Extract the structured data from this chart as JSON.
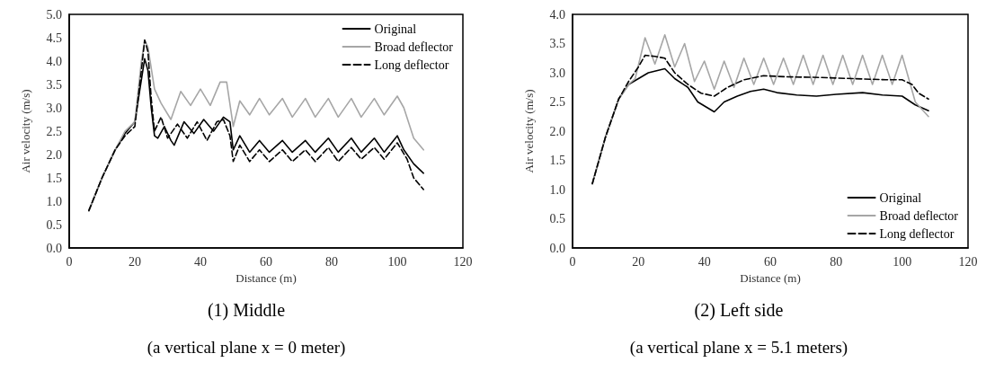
{
  "chart_data": [
    {
      "type": "line",
      "title": "(1) Middle",
      "subtitle": "(a vertical plane x = 0 meter)",
      "xlabel": "Distance (m)",
      "ylabel": "Air velocity (m/s)",
      "xlim": [
        0,
        120
      ],
      "xticks": [
        0,
        20,
        40,
        60,
        80,
        100,
        120
      ],
      "ylim": [
        0,
        5
      ],
      "yticks": [
        {
          "value": 0,
          "label": "0.0"
        },
        {
          "value": 0.5,
          "label": "0.5"
        },
        {
          "value": 1,
          "label": "1.0"
        },
        {
          "value": 1.5,
          "label": "1.5"
        },
        {
          "value": 2,
          "label": "2.0"
        },
        {
          "value": 2.5,
          "label": "2.5"
        },
        {
          "value": 3,
          "label": "3.0"
        },
        {
          "value": 3.5,
          "label": "3.5"
        },
        {
          "value": 4,
          "label": "4.0"
        },
        {
          "value": 4.5,
          "label": "4.5"
        },
        {
          "value": 5,
          "label": "5.0"
        }
      ],
      "legend": "top right",
      "marker": "none",
      "series": [
        {
          "name": "Original",
          "color": "#000000",
          "line_style": "solid",
          "x": [
            6,
            10,
            14,
            17,
            20,
            22,
            23,
            24,
            25,
            26,
            27,
            29,
            31,
            32,
            35,
            38,
            41,
            44,
            47,
            49,
            50,
            52,
            55,
            58,
            61,
            65,
            68,
            72,
            75,
            79,
            82,
            86,
            89,
            93,
            96,
            100,
            102,
            105,
            108
          ],
          "values": [
            0.8,
            1.5,
            2.1,
            2.45,
            2.7,
            3.6,
            4.05,
            3.8,
            3.0,
            2.4,
            2.35,
            2.6,
            2.3,
            2.2,
            2.7,
            2.45,
            2.75,
            2.5,
            2.8,
            2.7,
            2.1,
            2.4,
            2.05,
            2.3,
            2.05,
            2.3,
            2.05,
            2.3,
            2.05,
            2.35,
            2.05,
            2.35,
            2.05,
            2.35,
            2.05,
            2.4,
            2.1,
            1.8,
            1.6
          ]
        },
        {
          "name": "Broad deflector",
          "color": "#a6a6a6",
          "line_style": "solid",
          "x": [
            6,
            10,
            14,
            17,
            20,
            22,
            23,
            24,
            26,
            28,
            31,
            34,
            37,
            40,
            43,
            46,
            48,
            50,
            52,
            55,
            58,
            61,
            65,
            68,
            72,
            75,
            79,
            82,
            86,
            89,
            93,
            96,
            100,
            102,
            105,
            108
          ],
          "values": [
            0.8,
            1.5,
            2.1,
            2.5,
            2.7,
            4.0,
            4.45,
            4.3,
            3.4,
            3.1,
            2.75,
            3.35,
            3.05,
            3.4,
            3.05,
            3.55,
            3.55,
            2.6,
            3.15,
            2.85,
            3.2,
            2.85,
            3.2,
            2.8,
            3.2,
            2.8,
            3.2,
            2.8,
            3.2,
            2.8,
            3.2,
            2.85,
            3.25,
            3.0,
            2.35,
            2.1
          ]
        },
        {
          "name": "Long deflector",
          "color": "#000000",
          "line_style": "dashed",
          "x": [
            6,
            10,
            14,
            17,
            20,
            22,
            23,
            24,
            25,
            26,
            28,
            30,
            33,
            36,
            39,
            42,
            45,
            47,
            49,
            50,
            52,
            55,
            58,
            61,
            65,
            68,
            72,
            75,
            79,
            82,
            86,
            89,
            93,
            96,
            100,
            103,
            105,
            108
          ],
          "values": [
            0.8,
            1.5,
            2.1,
            2.4,
            2.6,
            3.8,
            4.45,
            4.2,
            3.2,
            2.5,
            2.8,
            2.35,
            2.65,
            2.35,
            2.7,
            2.3,
            2.7,
            2.75,
            2.4,
            1.85,
            2.2,
            1.85,
            2.1,
            1.85,
            2.1,
            1.85,
            2.1,
            1.85,
            2.15,
            1.85,
            2.15,
            1.9,
            2.15,
            1.9,
            2.25,
            1.9,
            1.5,
            1.25
          ]
        }
      ]
    },
    {
      "type": "line",
      "title": "(2) Left side",
      "subtitle": "(a vertical plane x = 5.1 meters)",
      "xlabel": "Distance (m)",
      "ylabel": "Air velocity (m/s)",
      "xlim": [
        0,
        120
      ],
      "xticks": [
        0,
        20,
        40,
        60,
        80,
        100,
        120
      ],
      "ylim": [
        0,
        4
      ],
      "yticks": [
        {
          "value": 0,
          "label": "0.0"
        },
        {
          "value": 0.5,
          "label": "0.5"
        },
        {
          "value": 1,
          "label": "1.0"
        },
        {
          "value": 1.5,
          "label": "1.5"
        },
        {
          "value": 2,
          "label": "2.0"
        },
        {
          "value": 2.5,
          "label": "2.5"
        },
        {
          "value": 3,
          "label": "3.0"
        },
        {
          "value": 3.5,
          "label": "3.5"
        },
        {
          "value": 4,
          "label": "4.0"
        }
      ],
      "legend": "bottom right",
      "marker": "none",
      "series": [
        {
          "name": "Original",
          "color": "#000000",
          "line_style": "solid",
          "x": [
            6,
            10,
            14,
            17,
            20,
            23,
            28,
            31,
            35,
            38,
            43,
            46,
            50,
            54,
            58,
            62,
            68,
            74,
            80,
            88,
            94,
            100,
            104,
            108
          ],
          "values": [
            1.1,
            1.9,
            2.55,
            2.8,
            2.9,
            3.0,
            3.07,
            2.9,
            2.75,
            2.5,
            2.33,
            2.5,
            2.6,
            2.68,
            2.72,
            2.66,
            2.62,
            2.6,
            2.63,
            2.66,
            2.62,
            2.6,
            2.45,
            2.35
          ]
        },
        {
          "name": "Broad deflector",
          "color": "#a6a6a6",
          "line_style": "solid",
          "x": [
            6,
            10,
            14,
            17,
            19,
            22,
            25,
            28,
            31,
            34,
            37,
            40,
            43,
            46,
            49,
            52,
            55,
            58,
            61,
            64,
            67,
            70,
            73,
            76,
            79,
            82,
            85,
            88,
            91,
            94,
            97,
            100,
            102,
            104,
            108
          ],
          "values": [
            1.1,
            1.9,
            2.55,
            2.8,
            2.9,
            3.6,
            3.15,
            3.65,
            3.1,
            3.5,
            2.85,
            3.2,
            2.72,
            3.2,
            2.75,
            3.25,
            2.8,
            3.25,
            2.8,
            3.25,
            2.8,
            3.3,
            2.8,
            3.3,
            2.8,
            3.3,
            2.8,
            3.3,
            2.8,
            3.3,
            2.8,
            3.3,
            2.9,
            2.5,
            2.25
          ]
        },
        {
          "name": "Long deflector",
          "color": "#000000",
          "line_style": "dashed",
          "x": [
            6,
            10,
            14,
            17,
            20,
            22,
            25,
            28,
            31,
            35,
            39,
            43,
            47,
            52,
            58,
            65,
            75,
            85,
            95,
            100,
            103,
            105,
            108
          ],
          "values": [
            1.1,
            1.9,
            2.55,
            2.85,
            3.1,
            3.3,
            3.28,
            3.25,
            3.0,
            2.8,
            2.65,
            2.6,
            2.75,
            2.88,
            2.95,
            2.93,
            2.92,
            2.9,
            2.88,
            2.88,
            2.8,
            2.65,
            2.55
          ]
        }
      ]
    }
  ]
}
